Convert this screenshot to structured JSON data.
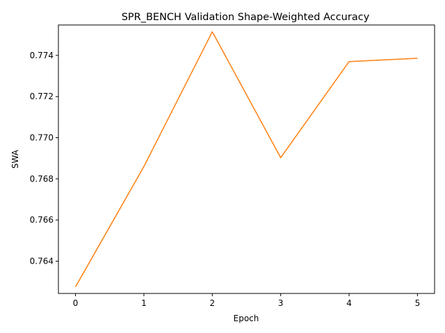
{
  "chart_data": {
    "type": "line",
    "title": "SPR_BENCH Validation Shape-Weighted Accuracy",
    "xlabel": "Epoch",
    "ylabel": "SWA",
    "x": [
      0,
      1,
      2,
      3,
      4,
      5
    ],
    "series": [
      {
        "values": [
          0.76275,
          0.7686,
          0.77515,
          0.76903,
          0.7737,
          0.77386
        ],
        "color": "#ff7f0e"
      }
    ],
    "xticks": [
      "0",
      "1",
      "2",
      "3",
      "4",
      "5"
    ],
    "yticks": [
      "0.764",
      "0.766",
      "0.768",
      "0.770",
      "0.772",
      "0.774"
    ],
    "xlim": [
      -0.25,
      5.25
    ],
    "ylim": [
      0.76243,
      0.77548
    ],
    "grid": false,
    "legend": "none"
  }
}
